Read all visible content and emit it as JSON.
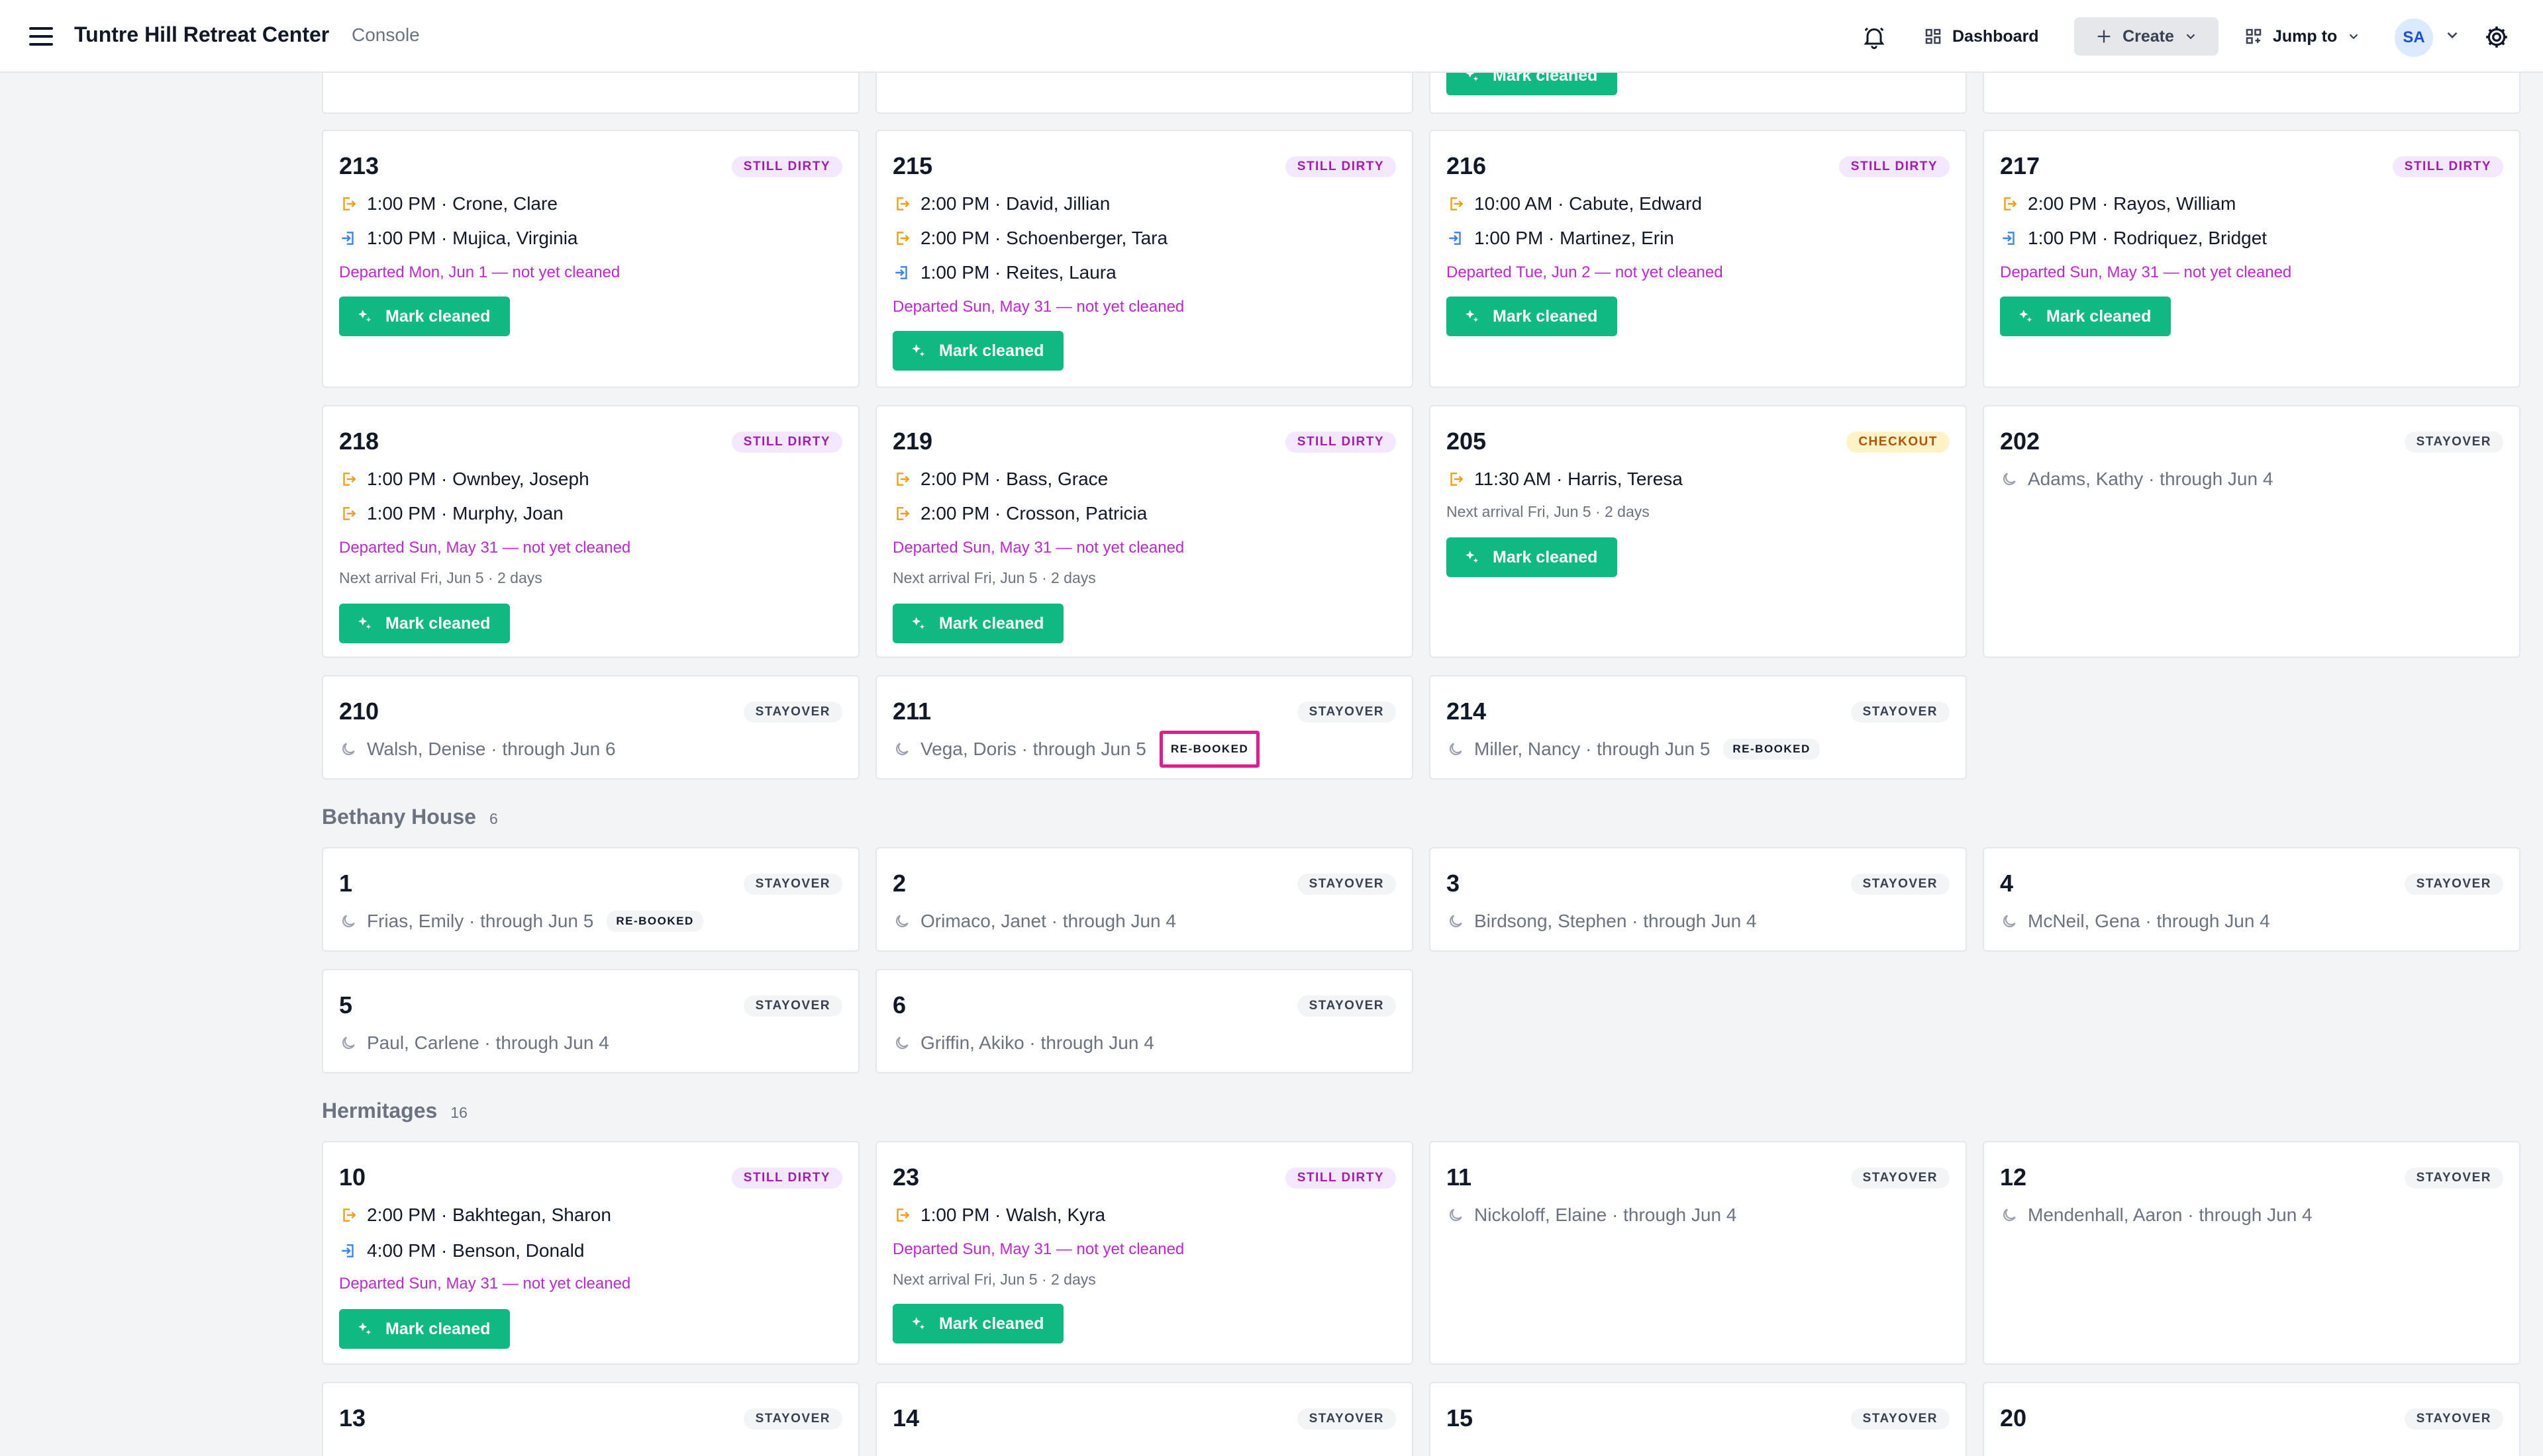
{
  "header": {
    "title": "Tuntre Hill Retreat Center",
    "subtitle": "Console",
    "dashboard": "Dashboard",
    "create": "Create",
    "jump_to": "Jump to",
    "avatar_initials": "SA"
  },
  "colors": {
    "accent_green": "#10b981",
    "dirty": "#c026d3",
    "checkout": "#b45309",
    "highlight": "#e11d8f"
  },
  "actions": {
    "mark_cleaned": "Mark cleaned"
  },
  "badges": {
    "still_dirty": "STILL DIRTY",
    "checkout": "CHECKOUT",
    "stayover": "STAYOVER",
    "rebooked": "RE-BOOKED"
  },
  "rooms": {
    "r213": {
      "num": "213",
      "r1": "1:00 PM · Crone, Clare",
      "r2": "1:00 PM · Mujica, Virginia",
      "note": "Departed Mon, Jun 1 — not yet cleaned"
    },
    "r215": {
      "num": "215",
      "r1": "2:00 PM · David, Jillian",
      "r2": "2:00 PM · Schoenberger, Tara",
      "r3": "1:00 PM · Reites, Laura",
      "note": "Departed Sun, May 31 — not yet cleaned"
    },
    "r216": {
      "num": "216",
      "r1": "10:00 AM · Cabute, Edward",
      "r2": "1:00 PM · Martinez, Erin",
      "note": "Departed Tue, Jun 2 — not yet cleaned"
    },
    "r217": {
      "num": "217",
      "r1": "2:00 PM · Rayos, William",
      "r2": "1:00 PM · Rodriquez, Bridget",
      "note": "Departed Sun, May 31 — not yet cleaned"
    },
    "r218": {
      "num": "218",
      "r1": "1:00 PM · Ownbey, Joseph",
      "r2": "1:00 PM · Murphy, Joan",
      "note": "Departed Sun, May 31 — not yet cleaned",
      "next": "Next arrival Fri, Jun 5 · 2 days"
    },
    "r219": {
      "num": "219",
      "r1": "2:00 PM · Bass, Grace",
      "r2": "2:00 PM · Crosson, Patricia",
      "note": "Departed Sun, May 31 — not yet cleaned",
      "next": "Next arrival Fri, Jun 5 · 2 days"
    },
    "r205": {
      "num": "205",
      "r1": "11:30 AM · Harris, Teresa",
      "next": "Next arrival Fri, Jun 5 · 2 days"
    },
    "r202": {
      "num": "202",
      "stay": "Adams, Kathy · through Jun 4"
    },
    "r210": {
      "num": "210",
      "stay": "Walsh, Denise · through Jun 6"
    },
    "r211": {
      "num": "211",
      "stay": "Vega, Doris · through Jun 5"
    },
    "r214": {
      "num": "214",
      "stay": "Miller, Nancy · through Jun 5"
    },
    "b1": {
      "num": "1",
      "stay": "Frias, Emily · through Jun 5"
    },
    "b2": {
      "num": "2",
      "stay": "Orimaco, Janet · through Jun 4"
    },
    "b3": {
      "num": "3",
      "stay": "Birdsong, Stephen · through Jun 4"
    },
    "b4": {
      "num": "4",
      "stay": "McNeil, Gena · through Jun 4"
    },
    "b5": {
      "num": "5",
      "stay": "Paul, Carlene · through Jun 4"
    },
    "b6": {
      "num": "6",
      "stay": "Griffin, Akiko · through Jun 4"
    },
    "h10": {
      "num": "10",
      "r1": "2:00 PM · Bakhtegan, Sharon",
      "r2": "4:00 PM · Benson, Donald",
      "note": "Departed Sun, May 31 — not yet cleaned"
    },
    "h23": {
      "num": "23",
      "r1": "1:00 PM · Walsh, Kyra",
      "note": "Departed Sun, May 31 — not yet cleaned",
      "next": "Next arrival Fri, Jun 5 · 2 days"
    },
    "h11": {
      "num": "11",
      "stay": "Nickoloff, Elaine · through Jun 4"
    },
    "h12": {
      "num": "12",
      "stay": "Mendenhall, Aaron · through Jun 4"
    },
    "h13": {
      "num": "13"
    },
    "h14": {
      "num": "14"
    },
    "h15": {
      "num": "15"
    },
    "h20": {
      "num": "20"
    }
  },
  "sections": {
    "bethany": {
      "title": "Bethany House",
      "count": "6"
    },
    "hermitages": {
      "title": "Hermitages",
      "count": "16"
    }
  }
}
